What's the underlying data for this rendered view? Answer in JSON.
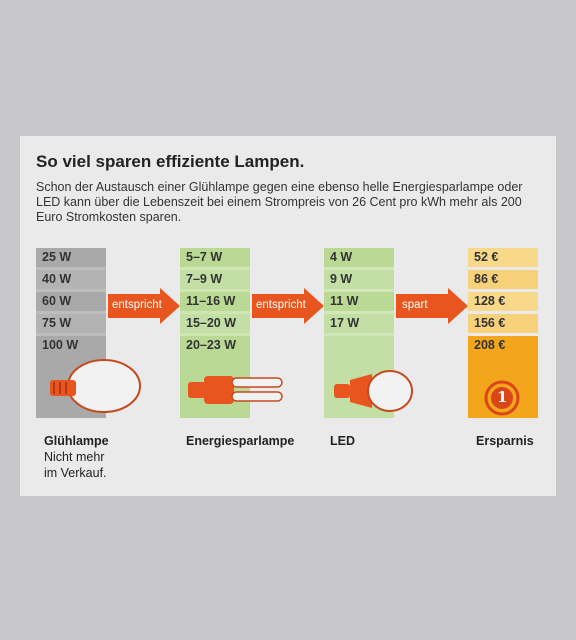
{
  "title": "So viel sparen effiziente Lampen.",
  "intro": "Schon der Austausch einer Glühlampe gegen eine ebenso helle Energiesparlampe oder LED kann über die Lebenszeit bei einem Strompreis von 26 Cent pro kWh mehr als 200 Euro Stromkosten sparen.",
  "columns": {
    "gluehlampe": {
      "name": "Glühlampe",
      "note_1": "Nicht mehr",
      "note_2": "im Verkauf.",
      "rows": [
        "25 W",
        "40 W",
        "60 W",
        "75 W",
        "100 W"
      ]
    },
    "energiesparlampe": {
      "name": "Energiesparlampe",
      "rows": [
        "5–7 W",
        "7–9 W",
        "11–16 W",
        "15–20 W",
        "20–23 W"
      ]
    },
    "led": {
      "name": "LED",
      "rows": [
        "4 W",
        "9 W",
        "11 W",
        "17 W"
      ]
    },
    "ersparnis": {
      "name": "Ersparnis",
      "rows": [
        "52 €",
        "86 €",
        "128 €",
        "156 €",
        "208 €"
      ],
      "badge": "1"
    }
  },
  "arrows": {
    "a1": "entspricht",
    "a2": "entspricht",
    "a3": "spart"
  },
  "colors": {
    "grey": "#b4b4b4",
    "green": "#c4dfa6",
    "orange_arrow": "#e8551e",
    "yellow": "#f7c95a",
    "gold": "#f3a51c"
  }
}
